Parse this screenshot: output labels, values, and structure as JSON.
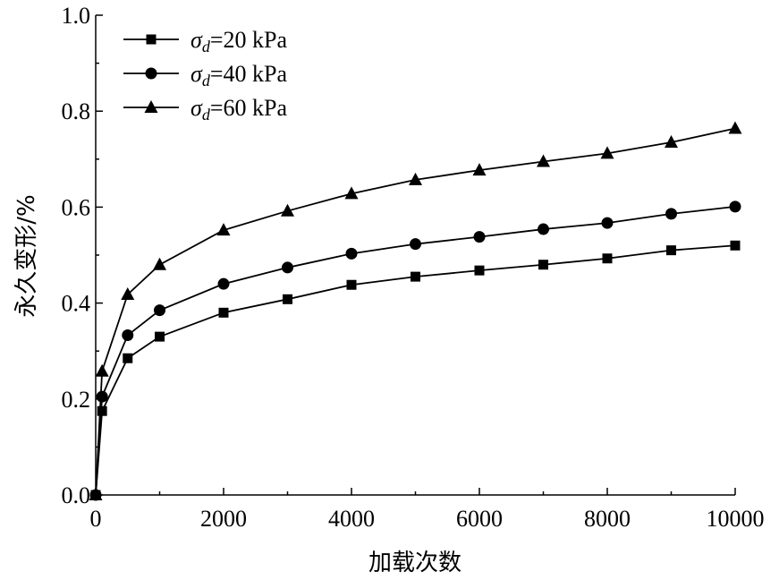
{
  "chart_data": {
    "type": "line",
    "xlabel": "加载次数",
    "ylabel": "永久变形/%",
    "xlim": [
      0,
      10000
    ],
    "ylim": [
      0,
      1.0
    ],
    "x_ticks": [
      0,
      2000,
      4000,
      6000,
      8000,
      10000
    ],
    "x_tick_labels": [
      "0",
      "2000",
      "4000",
      "6000",
      "8000",
      "10000"
    ],
    "y_ticks": [
      0,
      0.2,
      0.4,
      0.6,
      0.8,
      1.0
    ],
    "y_tick_labels": [
      "0.0",
      "0.2",
      "0.4",
      "0.6",
      "0.8",
      "1.0"
    ],
    "grid": false,
    "legend_position": "top-left",
    "x": [
      0,
      100,
      500,
      1000,
      2000,
      3000,
      4000,
      5000,
      6000,
      7000,
      8000,
      9000,
      10000
    ],
    "series": [
      {
        "name": "σd=20 kPa",
        "name_symbol": "σ",
        "name_subscript": "d",
        "name_rest": "=20 kPa",
        "marker": "square",
        "values": [
          0.0,
          0.175,
          0.285,
          0.33,
          0.38,
          0.408,
          0.438,
          0.455,
          0.468,
          0.48,
          0.493,
          0.51,
          0.52
        ]
      },
      {
        "name": "σd=40 kPa",
        "name_symbol": "σ",
        "name_subscript": "d",
        "name_rest": "=40 kPa",
        "marker": "circle",
        "values": [
          0.0,
          0.205,
          0.333,
          0.385,
          0.44,
          0.474,
          0.503,
          0.523,
          0.538,
          0.554,
          0.567,
          0.586,
          0.601
        ]
      },
      {
        "name": "σd=60 kPa",
        "name_symbol": "σ",
        "name_subscript": "d",
        "name_rest": "=60 kPa",
        "marker": "triangle",
        "values": [
          0.0,
          0.258,
          0.418,
          0.48,
          0.552,
          0.592,
          0.628,
          0.657,
          0.677,
          0.695,
          0.712,
          0.735,
          0.764
        ]
      }
    ]
  }
}
